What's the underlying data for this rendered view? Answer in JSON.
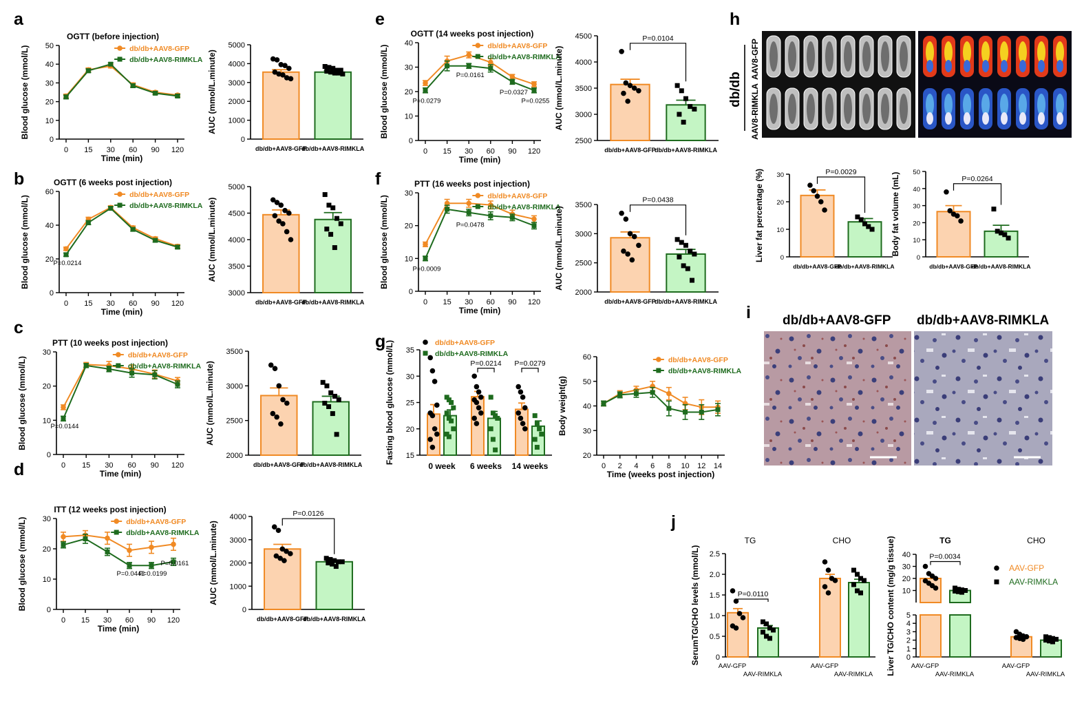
{
  "colors": {
    "gfp": "#f08a24",
    "rim": "#1e6b1e",
    "gfp_fill": "#fcd3b0",
    "rim_fill": "#c4f5c4",
    "black": "#000000"
  },
  "panel_labels": [
    "a",
    "b",
    "c",
    "d",
    "e",
    "f",
    "g",
    "h",
    "i",
    "j"
  ],
  "lines": [
    {
      "title": "OGTT (before injection)",
      "ylabel": "Blood glucose (mmol/L)",
      "xlabel": "Time (min)",
      "x": [
        "0",
        "15",
        "30",
        "60",
        "90",
        "120"
      ],
      "ylim": [
        0,
        50
      ],
      "yticks": [
        0,
        10,
        20,
        30,
        40,
        50
      ],
      "series": [
        {
          "name": "db/db+AAV8-GFP",
          "values": [
            23,
            37,
            39,
            29,
            25,
            23.5
          ],
          "err": [
            1,
            1,
            1,
            1,
            0.8,
            0.8
          ]
        },
        {
          "name": "db/db+AAV8-RIMKLA",
          "values": [
            22.5,
            36.5,
            40,
            28.5,
            24.5,
            23
          ],
          "err": [
            1,
            1,
            0.8,
            1,
            0.8,
            0.8
          ]
        }
      ],
      "annot": []
    },
    {
      "title": "OGTT (6 weeks post injection)",
      "ylabel": "Blood glucose (mmol/L)",
      "xlabel": "Time (min)",
      "x": [
        "0",
        "15",
        "30",
        "60",
        "90",
        "120"
      ],
      "ylim": [
        0,
        60
      ],
      "yticks": [
        0,
        20,
        40,
        60
      ],
      "series": [
        {
          "name": "db/db+AAV8-GFP",
          "values": [
            26,
            43.5,
            50.5,
            38.5,
            32,
            27.5
          ],
          "err": [
            1,
            1.2,
            1,
            1,
            1,
            1
          ]
        },
        {
          "name": "db/db+AAV8-RIMKLA",
          "values": [
            22.5,
            41.5,
            50,
            37.5,
            31,
            27
          ],
          "err": [
            1,
            1.2,
            1,
            1,
            1,
            1
          ]
        }
      ],
      "annot": [
        {
          "text": "P=0.0214",
          "xi": 0,
          "y": 18
        }
      ]
    },
    {
      "title": "PTT (10 weeks post injection)",
      "ylabel": "Blood glucose (mmol/L)",
      "xlabel": "Time (min)",
      "x": [
        "0",
        "15",
        "30",
        "60",
        "90",
        "120"
      ],
      "ylim": [
        0,
        30
      ],
      "yticks": [
        0,
        10,
        20,
        30
      ],
      "series": [
        {
          "name": "db/db+AAV8-GFP",
          "values": [
            13.8,
            26.3,
            26,
            25,
            23.5,
            21.5
          ],
          "err": [
            0.7,
            0.6,
            1.2,
            1.2,
            1.2,
            1
          ]
        },
        {
          "name": "db/db+AAV8-RIMKLA",
          "values": [
            10.5,
            26,
            25,
            23.8,
            23.3,
            20.5
          ],
          "err": [
            0.7,
            0.6,
            0.8,
            1.2,
            1.2,
            1
          ]
        }
      ],
      "annot": [
        {
          "text": "P=0.0144",
          "xi": 0,
          "y": 8.5
        }
      ]
    },
    {
      "title": "ITT (12 weeks post injection)",
      "ylabel": "Blood glucose (mmol/L)",
      "xlabel": "Time (min)",
      "x": [
        "0",
        "15",
        "30",
        "60",
        "90",
        "120"
      ],
      "ylim": [
        0,
        30
      ],
      "yticks": [
        0,
        10,
        20,
        30
      ],
      "series": [
        {
          "name": "db/db+AAV8-GFP",
          "values": [
            24,
            24.5,
            23.5,
            19.5,
            20.5,
            21.5
          ],
          "err": [
            1.5,
            1.5,
            2,
            2,
            2,
            2
          ]
        },
        {
          "name": "db/db+AAV8-RIMKLA",
          "values": [
            21.3,
            23.3,
            19,
            14.5,
            14.5,
            15.7
          ],
          "err": [
            1,
            1.5,
            1.2,
            1,
            1,
            1.2
          ]
        }
      ],
      "annot": [
        {
          "text": "P=0.0442",
          "xi": 3,
          "y": 12
        },
        {
          "text": "P=0.0199",
          "xi": 4,
          "y": 12
        },
        {
          "text": "P=0.0161",
          "xi": 5,
          "y": 15.5
        }
      ]
    },
    {
      "title": "OGTT (14 weeks post injection)",
      "ylabel": "Blood glucose (mmol/L)",
      "xlabel": "Time (min)",
      "x": [
        "0",
        "15",
        "30",
        "60",
        "90",
        "120"
      ],
      "ylim": [
        0,
        40
      ],
      "yticks": [
        0,
        10,
        20,
        30,
        40
      ],
      "series": [
        {
          "name": "db/db+AAV8-GFP",
          "values": [
            23.5,
            32.5,
            35,
            32,
            26,
            23
          ],
          "err": [
            1,
            2,
            1.2,
            1.5,
            1,
            1
          ]
        },
        {
          "name": "db/db+AAV8-RIMKLA",
          "values": [
            20.5,
            30.5,
            30.5,
            29.5,
            24,
            20.5
          ],
          "err": [
            1,
            2,
            1,
            1.5,
            1,
            1
          ]
        }
      ],
      "annot": [
        {
          "text": "P=0.0279",
          "xi": 0,
          "y": 16.5
        },
        {
          "text": "P=0.0161",
          "xi": 2,
          "y": 27
        },
        {
          "text": "P=0.0327",
          "xi": 4,
          "y": 20
        },
        {
          "text": "P=0.0255",
          "xi": 5,
          "y": 16.5
        }
      ]
    },
    {
      "title": "PTT (16 weeks post injection)",
      "ylabel": "Blood glucose (mmol/L)",
      "xlabel": "Time (min)",
      "x": [
        "0",
        "15",
        "30",
        "60",
        "90",
        "120"
      ],
      "ylim": [
        0,
        30
      ],
      "yticks": [
        0,
        10,
        20,
        30
      ],
      "series": [
        {
          "name": "db/db+AAV8-GFP",
          "values": [
            14.3,
            26.8,
            26.8,
            26.3,
            23.5,
            22
          ],
          "err": [
            0.7,
            1.2,
            1.2,
            1.2,
            1.2,
            1
          ]
        },
        {
          "name": "db/db+AAV8-RIMKLA",
          "values": [
            10,
            25,
            24,
            23,
            22.5,
            20
          ],
          "err": [
            0.7,
            1.2,
            1,
            1.2,
            1,
            1
          ]
        }
      ],
      "annot": [
        {
          "text": "P=0.0478",
          "xi": 2,
          "y": 20.5
        },
        {
          "text": "P=0.0009",
          "xi": 0,
          "y": 7
        }
      ]
    },
    {
      "title": "",
      "ylabel": "Body weight(g)",
      "xlabel": "Time (weeks post injection)",
      "x": [
        "0",
        "2",
        "4",
        "6",
        "8",
        "10",
        "12",
        "14"
      ],
      "ylim": [
        20,
        60
      ],
      "yticks": [
        20,
        30,
        40,
        50,
        60
      ],
      "series": [
        {
          "name": "db/db+AAV8-GFP",
          "values": [
            41,
            45,
            46.5,
            48,
            45,
            41,
            39.5,
            39.5
          ],
          "err": [
            1,
            1.2,
            1.5,
            2,
            2.5,
            2.5,
            3,
            2.5
          ]
        },
        {
          "name": "db/db+AAV8-RIMKLA",
          "values": [
            41,
            44.5,
            45,
            45.5,
            39,
            37.5,
            37.5,
            38.5
          ],
          "err": [
            1,
            1.2,
            1.5,
            2,
            3,
            3,
            3,
            2.5
          ]
        }
      ],
      "annot": []
    }
  ],
  "bars": [
    {
      "ylabel": "AUC (mmol/L.minute)",
      "ylim": [
        0,
        5000
      ],
      "yticks": [
        0,
        1000,
        2000,
        3000,
        4000,
        5000
      ],
      "categories": [
        "db/db+AAV8-GFP",
        "db/db+AAV8-RIMKLA"
      ],
      "values": [
        3550,
        3550
      ],
      "err": [
        130,
        80
      ],
      "pvalue": "",
      "points": [
        [
          4250,
          4200,
          3950,
          3900,
          3750,
          3550,
          3450,
          3400,
          3250,
          3200
        ],
        [
          3850,
          3800,
          3750,
          3650,
          3650,
          3600,
          3550,
          3500,
          3500,
          3450
        ]
      ]
    },
    {
      "ylabel": "AUC (mmol/L.minute)",
      "ylim": [
        3000,
        5000
      ],
      "yticks": [
        3000,
        3500,
        4000,
        4500,
        5000
      ],
      "categories": [
        "db/db+AAV8-GFP",
        "db/db+AAV8-RIMKLA"
      ],
      "values": [
        4470,
        4380
      ],
      "err": [
        90,
        130
      ],
      "pvalue": "",
      "points": [
        [
          4750,
          4700,
          4650,
          4550,
          4500,
          4450,
          4350,
          4300,
          4150,
          4000
        ],
        [
          4850,
          4650,
          4600,
          4400,
          4300,
          4200,
          4100,
          3850
        ]
      ]
    },
    {
      "ylabel": "AUC (mmol/L.minute)",
      "ylim": [
        2000,
        3500
      ],
      "yticks": [
        2000,
        2500,
        3000,
        3500
      ],
      "categories": [
        "db/db+AAV8-GFP",
        "db/db+AAV8-RIMKLA"
      ],
      "values": [
        2860,
        2770
      ],
      "err": [
        110,
        80
      ],
      "pvalue": "",
      "points": [
        [
          3300,
          3250,
          3000,
          2800,
          2750,
          2600,
          2550,
          2450
        ],
        [
          3050,
          3000,
          2900,
          2850,
          2800,
          2750,
          2700,
          2600,
          2300
        ]
      ]
    },
    {
      "ylabel": "AUC (mmol/L.minute)",
      "ylim": [
        0,
        4000
      ],
      "yticks": [
        0,
        1000,
        2000,
        3000,
        4000
      ],
      "categories": [
        "db/db+AAV8-GFP",
        "db/db+AAV8-RIMKLA"
      ],
      "values": [
        2600,
        2050
      ],
      "err": [
        200,
        60
      ],
      "pvalue": "P=0.0126",
      "points": [
        [
          3550,
          3400,
          2600,
          2500,
          2400,
          2300,
          2200,
          2100
        ],
        [
          2200,
          2150,
          2100,
          2050,
          2050,
          2000,
          1950,
          1850
        ]
      ]
    },
    {
      "ylabel": "AUC (mmol/L.minute)",
      "ylim": [
        2500,
        4500
      ],
      "yticks": [
        2500,
        3000,
        3500,
        4000,
        4500
      ],
      "categories": [
        "db/db+AAV8-GFP",
        "db/db+AAV8-RIMKLA"
      ],
      "values": [
        3570,
        3180
      ],
      "err": [
        100,
        90
      ],
      "pvalue": "P=0.0104",
      "points": [
        [
          4200,
          3600,
          3550,
          3500,
          3450,
          3400,
          3250
        ],
        [
          3550,
          3450,
          3300,
          3150,
          3100,
          3000,
          2850
        ]
      ]
    },
    {
      "ylabel": "AUC (mmol/L.minute)",
      "ylim": [
        2000,
        3500
      ],
      "yticks": [
        2000,
        2500,
        3000,
        3500
      ],
      "categories": [
        "db/db+AAV8-GFP",
        "db/db+AAV8-RIMKLA"
      ],
      "values": [
        2930,
        2650
      ],
      "err": [
        100,
        80
      ],
      "pvalue": "P=0.0438",
      "points": [
        [
          3350,
          3250,
          3000,
          2950,
          2800,
          2700,
          2650,
          2550
        ],
        [
          2900,
          2850,
          2800,
          2700,
          2650,
          2600,
          2450,
          2400,
          2200
        ]
      ]
    },
    {
      "ylabel": "Liver fat percentage (%)",
      "ylim": [
        0,
        30
      ],
      "yticks": [
        0,
        10,
        20,
        30
      ],
      "categories": [
        "db/db+AAV8-GFP",
        "db/db+AAV8-RIMKLA"
      ],
      "values": [
        22.3,
        12.7
      ],
      "err": [
        2,
        1.2
      ],
      "pvalue": "P=0.0029",
      "points": [
        [
          26,
          24,
          22,
          20,
          17
        ],
        [
          14.5,
          13.5,
          12,
          11,
          10
        ]
      ]
    },
    {
      "ylabel": "Body fat volume (mL)",
      "ylim": [
        0,
        50
      ],
      "yticks": [
        0,
        10,
        20,
        30,
        40,
        50
      ],
      "categories": [
        "db/db+AAV8-GFP",
        "db/db+AAV8-RIMKLA"
      ],
      "values": [
        26.5,
        15
      ],
      "err": [
        3.5,
        3.5
      ],
      "pvalue": "P=0.0264",
      "points": [
        [
          38,
          27,
          25,
          24,
          21
        ],
        [
          28,
          15,
          14,
          13,
          11
        ]
      ]
    }
  ],
  "fasting": {
    "ylabel": "Fasting blood glucose (mmol/L)",
    "ylim": [
      15,
      35
    ],
    "yticks": [
      15,
      20,
      25,
      30,
      35
    ],
    "groups": [
      "0 week",
      "6 weeks",
      "14 weeks"
    ],
    "gfp": {
      "name": "db/db+AAV8-GFP",
      "values": [
        22.8,
        26.1,
        23.7
      ],
      "err": [
        1.8,
        1,
        1.2
      ],
      "points": [
        [
          33.5,
          31,
          29,
          24.5,
          23,
          22.5,
          20,
          19,
          18,
          16.5
        ],
        [
          30,
          28,
          27,
          26,
          25.5,
          25,
          24,
          23,
          22,
          21
        ],
        [
          28,
          27,
          26,
          24,
          23,
          22,
          21,
          20
        ]
      ]
    },
    "rim": {
      "name": "db/db+AAV8-RIMKLA",
      "values": [
        22.5,
        22,
        20.5
      ],
      "err": [
        1.1,
        1.3,
        1
      ],
      "points": [
        [
          26,
          25.5,
          25,
          24,
          23,
          22,
          21.5,
          20,
          19,
          18.5
        ],
        [
          26,
          23,
          22.5,
          22,
          20,
          18,
          16
        ],
        [
          22.5,
          21,
          20,
          19,
          18,
          16.5
        ]
      ]
    },
    "pvalues": [
      {
        "text": "P=0.0214",
        "gi": 1
      },
      {
        "text": "P=0.0279",
        "gi": 2
      }
    ]
  },
  "lipid": {
    "serum": {
      "ylabel": "SerumTG/CHO levels (mmol/L)",
      "ylim": [
        0,
        2.5
      ],
      "yticks": [
        0,
        0.5,
        1.0,
        1.5,
        2.0,
        2.5
      ],
      "ytick_labels": [
        "0",
        "0.5",
        "1.0",
        "1.5",
        "2.0",
        "2.5"
      ],
      "groups": [
        "TG",
        "CHO"
      ],
      "cats": [
        "AAV-GFP",
        "AAV-RIMKLA"
      ],
      "values": [
        [
          1.07,
          0.7
        ],
        [
          1.9,
          1.8
        ]
      ],
      "err": [
        [
          0.1,
          0.06
        ],
        [
          0.1,
          0.08
        ]
      ],
      "points": [
        [
          [
            1.6,
            1.35,
            1.05,
            0.95,
            0.75,
            0.7
          ],
          [
            0.85,
            0.8,
            0.7,
            0.65,
            0.6,
            0.5,
            0.45
          ]
        ],
        [
          [
            2.3,
            2.1,
            1.9,
            1.85,
            1.7,
            1.55
          ],
          [
            2.1,
            2.0,
            1.9,
            1.85,
            1.75,
            1.6,
            1.55
          ]
        ]
      ],
      "pvalue": "P=0.0110"
    },
    "liver": {
      "ylabel": "Liver TG/CHO content (mg/g tissue)",
      "top_ylim": [
        0,
        40
      ],
      "top_ticks": [
        0,
        10,
        20,
        30,
        40
      ],
      "top_tick_labels": [
        "",
        "10",
        "20",
        "30",
        "40"
      ],
      "bot_ylim": [
        0,
        5
      ],
      "bot_ticks": [
        0,
        1,
        2,
        3,
        4,
        5
      ],
      "groups": [
        "TG",
        "CHO"
      ],
      "cats": [
        "AAV-GFP",
        "AAV-RIMKLA"
      ],
      "values": [
        [
          20,
          10
        ],
        [
          2.4,
          2.0
        ]
      ],
      "err": [
        [
          2.5,
          0.8
        ],
        [
          0.2,
          0.1
        ]
      ],
      "points": [
        [
          [
            30,
            24,
            22,
            20,
            18,
            16,
            14,
            12
          ],
          [
            12,
            11,
            10.5,
            10,
            9.5,
            9,
            8.5
          ]
        ],
        [
          [
            3,
            2.7,
            2.5,
            2.4,
            2.3,
            2.2,
            2.1
          ],
          [
            2.4,
            2.3,
            2.2,
            2.1,
            2.0,
            1.9,
            1.8
          ]
        ]
      ],
      "pvalue": "P=0.0034",
      "legend": [
        "AAV-GFP",
        "AAV-RIMKLA"
      ]
    }
  },
  "mri": {
    "group_label": "db/db",
    "row_labels": [
      "AAV8-GFP",
      "AAV8-RIMKLA"
    ]
  },
  "histology": {
    "titles": [
      "db/db+AAV8-GFP",
      "db/db+AAV8-RIMKLA"
    ]
  }
}
